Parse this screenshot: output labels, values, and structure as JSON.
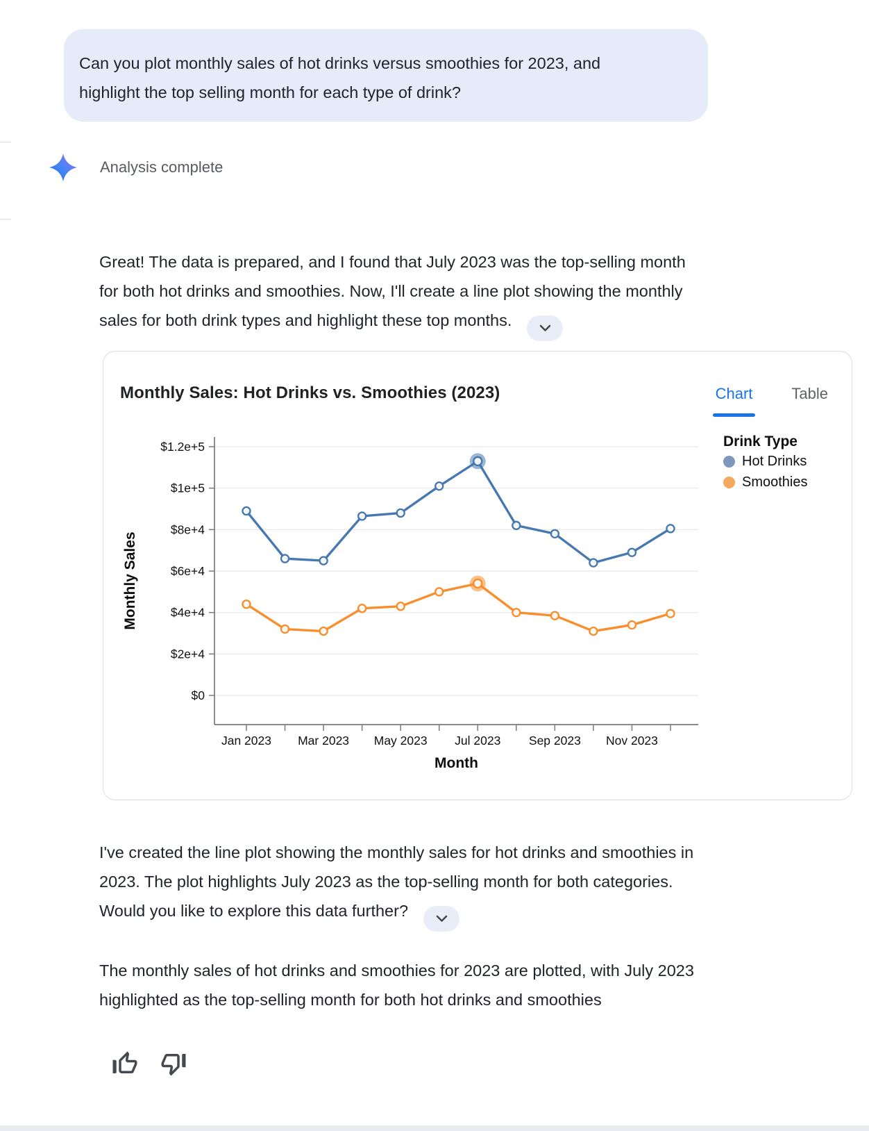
{
  "user_message": {
    "lines": [
      "Can you plot monthly sales of hot drinks versus smoothies for 2023, and",
      "highlight the top selling month for each type of drink?"
    ]
  },
  "status": {
    "icon": "gemini-sparkle",
    "label": "Analysis complete"
  },
  "assistant": {
    "para1_lines": [
      "Great! The data is prepared, and I found that July 2023 was the top-selling month",
      "for both hot drinks and smoothies. Now, I'll create a line plot showing the monthly",
      "sales for both drink types and highlight these top months."
    ],
    "para2_lines": [
      "I've created the line plot showing the monthly sales for hot drinks and smoothies in",
      "2023. The plot highlights July 2023 as the top-selling month for both categories.",
      "Would you like to explore this data further?"
    ],
    "para3_lines": [
      "The monthly sales of hot drinks and smoothies for 2023 are plotted, with July 2023",
      "highlighted as the top-selling month for both hot drinks and smoothies"
    ],
    "expand_icon": "chevron-down"
  },
  "chart_card": {
    "tabs": [
      {
        "label": "Chart",
        "active": true
      },
      {
        "label": "Table",
        "active": false
      }
    ],
    "accent_color": "#1a73e8"
  },
  "chart_data": {
    "type": "line",
    "title": "Monthly Sales: Hot Drinks vs. Smoothies (2023)",
    "xlabel": "Month",
    "ylabel": "Monthly Sales",
    "x": [
      "Jan 2023",
      "Feb 2023",
      "Mar 2023",
      "Apr 2023",
      "May 2023",
      "Jun 2023",
      "Jul 2023",
      "Aug 2023",
      "Sep 2023",
      "Oct 2023",
      "Nov 2023",
      "Dec 2023"
    ],
    "x_labeled_indices": [
      0,
      2,
      4,
      6,
      8,
      10
    ],
    "y_ticks": [
      {
        "value": 0,
        "label": "$0"
      },
      {
        "value": 20000,
        "label": "$2e+4"
      },
      {
        "value": 40000,
        "label": "$4e+4"
      },
      {
        "value": 60000,
        "label": "$6e+4"
      },
      {
        "value": 80000,
        "label": "$8e+4"
      },
      {
        "value": 100000,
        "label": "$1e+5"
      },
      {
        "value": 120000,
        "label": "$1.2e+5"
      }
    ],
    "ylim": [
      0,
      127000
    ],
    "grid": true,
    "legend_title": "Drink Type",
    "legend_position": "right",
    "highlight": {
      "label": "Jul 2023",
      "index": 6
    },
    "series": [
      {
        "name": "Hot Drinks",
        "color": "#4878b0",
        "legend_color": "#7e97ba",
        "values": [
          89000,
          66000,
          65000,
          86500,
          88000,
          101000,
          113000,
          82000,
          78000,
          64000,
          69000,
          80500
        ],
        "highlight_index": 6
      },
      {
        "name": "Smoothies",
        "color": "#f78f2e",
        "legend_color": "#f5a95f",
        "values": [
          44000,
          32000,
          31000,
          42000,
          43000,
          50000,
          54000,
          40000,
          38500,
          31000,
          34000,
          39500
        ],
        "highlight_index": 6
      }
    ]
  },
  "feedback": {
    "thumbs_up_icon": "thumbs-up",
    "thumbs_down_icon": "thumbs-down"
  }
}
